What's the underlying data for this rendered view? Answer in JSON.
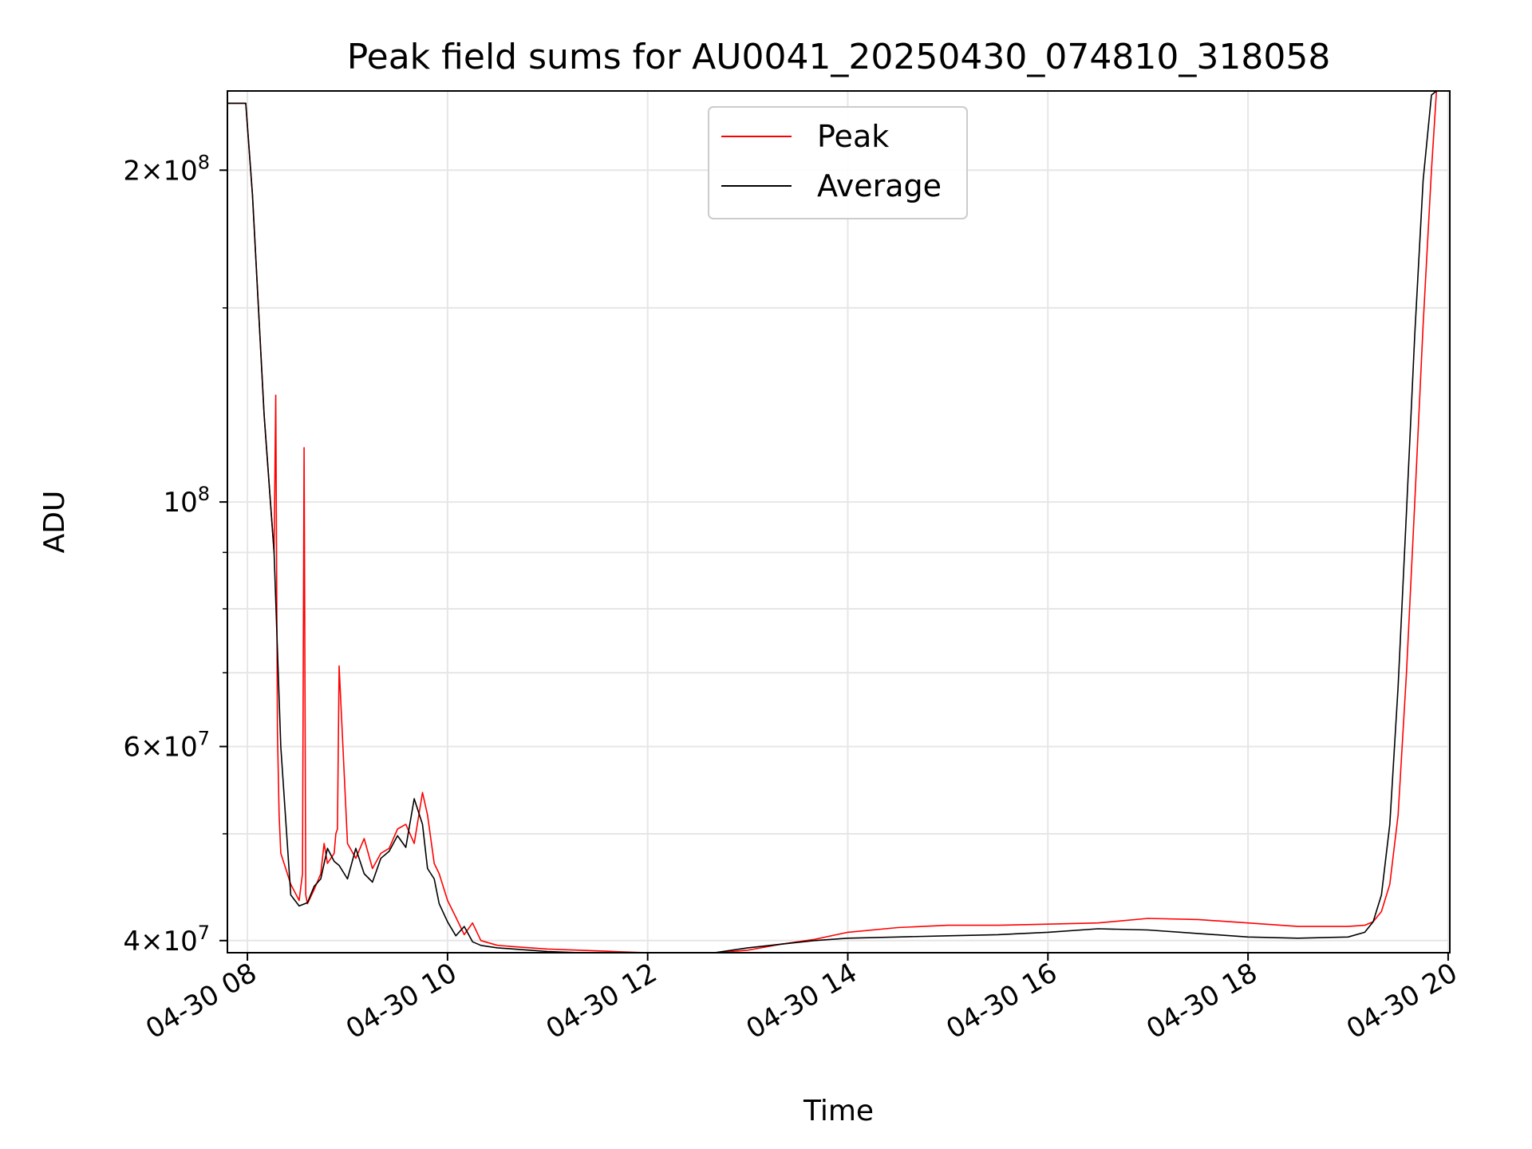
{
  "chart_data": {
    "type": "line",
    "title": "Peak field sums for AU0041_20250430_074810_318058",
    "xlabel": "Time",
    "ylabel": "ADU",
    "x_scale": "time",
    "y_scale": "log",
    "xlim": [
      "2025-04-30 07:48",
      "2025-04-30 20:01"
    ],
    "ylim": [
      39000000,
      236000000
    ],
    "x_ticks": [
      {
        "value": "2025-04-30 08:00",
        "label": "04-30 08"
      },
      {
        "value": "2025-04-30 10:00",
        "label": "04-30 10"
      },
      {
        "value": "2025-04-30 12:00",
        "label": "04-30 12"
      },
      {
        "value": "2025-04-30 14:00",
        "label": "04-30 14"
      },
      {
        "value": "2025-04-30 16:00",
        "label": "04-30 16"
      },
      {
        "value": "2025-04-30 18:00",
        "label": "04-30 18"
      },
      {
        "value": "2025-04-30 20:00",
        "label": "04-30 20"
      }
    ],
    "y_ticks": [
      {
        "value": 40000000,
        "base": "4",
        "exp": "7"
      },
      {
        "value": 60000000,
        "base": "6",
        "exp": "7"
      },
      {
        "value": 100000000,
        "base": "",
        "exp": "8"
      },
      {
        "value": 200000000,
        "base": "2",
        "exp": "8"
      }
    ],
    "grid": true,
    "legend_position": "top-center",
    "series": [
      {
        "name": "Peak",
        "color": "#ff0000",
        "x": [
          "2025-04-30 07:48",
          "2025-04-30 07:59",
          "2025-04-30 08:03",
          "2025-04-30 08:10",
          "2025-04-30 08:16",
          "2025-04-30 08:17",
          "2025-04-30 08:18",
          "2025-04-30 08:19",
          "2025-04-30 08:20",
          "2025-04-30 08:26",
          "2025-04-30 08:31",
          "2025-04-30 08:33",
          "2025-04-30 08:34",
          "2025-04-30 08:35",
          "2025-04-30 08:36",
          "2025-04-30 08:40",
          "2025-04-30 08:44",
          "2025-04-30 08:46",
          "2025-04-30 08:48",
          "2025-04-30 08:52",
          "2025-04-30 08:53",
          "2025-04-30 08:54",
          "2025-04-30 08:55",
          "2025-04-30 09:00",
          "2025-04-30 09:05",
          "2025-04-30 09:10",
          "2025-04-30 09:15",
          "2025-04-30 09:20",
          "2025-04-30 09:25",
          "2025-04-30 09:30",
          "2025-04-30 09:35",
          "2025-04-30 09:40",
          "2025-04-30 09:45",
          "2025-04-30 09:48",
          "2025-04-30 09:52",
          "2025-04-30 09:55",
          "2025-04-30 10:00",
          "2025-04-30 10:05",
          "2025-04-30 10:10",
          "2025-04-30 10:15",
          "2025-04-30 10:20",
          "2025-04-30 10:25",
          "2025-04-30 10:30",
          "2025-04-30 10:40",
          "2025-04-30 10:50",
          "2025-04-30 11:00",
          "2025-04-30 11:20",
          "2025-04-30 11:40",
          "2025-04-30 12:00",
          "2025-04-30 12:20",
          "2025-04-30 12:40",
          "2025-04-30 13:00",
          "2025-04-30 13:20",
          "2025-04-30 13:40",
          "2025-04-30 14:00",
          "2025-04-30 14:30",
          "2025-04-30 15:00",
          "2025-04-30 15:30",
          "2025-04-30 16:00",
          "2025-04-30 16:30",
          "2025-04-30 17:00",
          "2025-04-30 17:30",
          "2025-04-30 18:00",
          "2025-04-30 18:30",
          "2025-04-30 19:00",
          "2025-04-30 19:10",
          "2025-04-30 19:15",
          "2025-04-30 19:20",
          "2025-04-30 19:25",
          "2025-04-30 19:30",
          "2025-04-30 19:35",
          "2025-04-30 19:40",
          "2025-04-30 19:45",
          "2025-04-30 19:50",
          "2025-04-30 19:53"
        ],
        "y": [
          230000000,
          230000000,
          190000000,
          120000000,
          90000000,
          125000000,
          62000000,
          52000000,
          48000000,
          45000000,
          43500000,
          46000000,
          112000000,
          44000000,
          43200000,
          44500000,
          46000000,
          49000000,
          47000000,
          48000000,
          50000000,
          50500000,
          71000000,
          49000000,
          47500000,
          49500000,
          46500000,
          48000000,
          48500000,
          50500000,
          51000000,
          49000000,
          54500000,
          52000000,
          47000000,
          46000000,
          43500000,
          42000000,
          40500000,
          41500000,
          40000000,
          39800000,
          39600000,
          39500000,
          39400000,
          39300000,
          39200000,
          39100000,
          39000000,
          38900000,
          39000000,
          39200000,
          39700000,
          40100000,
          40700000,
          41100000,
          41300000,
          41300000,
          41400000,
          41500000,
          41900000,
          41800000,
          41500000,
          41200000,
          41200000,
          41300000,
          41600000,
          42500000,
          45000000,
          52000000,
          70000000,
          100000000,
          145000000,
          200000000,
          236000000
        ]
      },
      {
        "name": "Average",
        "color": "#000000",
        "x": [
          "2025-04-30 07:48",
          "2025-04-30 07:59",
          "2025-04-30 08:03",
          "2025-04-30 08:10",
          "2025-04-30 08:16",
          "2025-04-30 08:20",
          "2025-04-30 08:26",
          "2025-04-30 08:31",
          "2025-04-30 08:36",
          "2025-04-30 08:40",
          "2025-04-30 08:44",
          "2025-04-30 08:48",
          "2025-04-30 08:52",
          "2025-04-30 08:55",
          "2025-04-30 09:00",
          "2025-04-30 09:05",
          "2025-04-30 09:10",
          "2025-04-30 09:15",
          "2025-04-30 09:20",
          "2025-04-30 09:25",
          "2025-04-30 09:30",
          "2025-04-30 09:35",
          "2025-04-30 09:40",
          "2025-04-30 09:45",
          "2025-04-30 09:48",
          "2025-04-30 09:52",
          "2025-04-30 09:55",
          "2025-04-30 10:00",
          "2025-04-30 10:05",
          "2025-04-30 10:10",
          "2025-04-30 10:15",
          "2025-04-30 10:20",
          "2025-04-30 10:25",
          "2025-04-30 10:30",
          "2025-04-30 10:40",
          "2025-04-30 10:50",
          "2025-04-30 11:00",
          "2025-04-30 11:20",
          "2025-04-30 11:40",
          "2025-04-30 12:00",
          "2025-04-30 12:20",
          "2025-04-30 12:40",
          "2025-04-30 13:00",
          "2025-04-30 13:20",
          "2025-04-30 13:40",
          "2025-04-30 14:00",
          "2025-04-30 14:30",
          "2025-04-30 15:00",
          "2025-04-30 15:30",
          "2025-04-30 16:00",
          "2025-04-30 16:30",
          "2025-04-30 17:00",
          "2025-04-30 17:30",
          "2025-04-30 18:00",
          "2025-04-30 18:30",
          "2025-04-30 19:00",
          "2025-04-30 19:10",
          "2025-04-30 19:15",
          "2025-04-30 19:20",
          "2025-04-30 19:25",
          "2025-04-30 19:30",
          "2025-04-30 19:35",
          "2025-04-30 19:40",
          "2025-04-30 19:45",
          "2025-04-30 19:50",
          "2025-04-30 19:53"
        ],
        "y": [
          230000000,
          230000000,
          190000000,
          120000000,
          90000000,
          60000000,
          44000000,
          43000000,
          43300000,
          44800000,
          45500000,
          48500000,
          47200000,
          46800000,
          45500000,
          48500000,
          46000000,
          45200000,
          47500000,
          48200000,
          49800000,
          48600000,
          53800000,
          51000000,
          46500000,
          45500000,
          43200000,
          41600000,
          40400000,
          41200000,
          39900000,
          39600000,
          39500000,
          39400000,
          39300000,
          39200000,
          39100000,
          39000000,
          38900000,
          38800000,
          38900000,
          39000000,
          39400000,
          39700000,
          40000000,
          40200000,
          40300000,
          40400000,
          40500000,
          40700000,
          41000000,
          40900000,
          40600000,
          40300000,
          40200000,
          40300000,
          40700000,
          41600000,
          44000000,
          51000000,
          68000000,
          98000000,
          142000000,
          196000000,
          234000000,
          236000000
        ]
      }
    ]
  }
}
